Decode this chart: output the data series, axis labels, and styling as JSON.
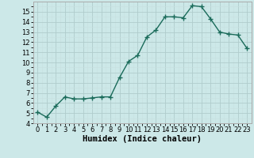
{
  "x": [
    0,
    1,
    2,
    3,
    4,
    5,
    6,
    7,
    8,
    9,
    10,
    11,
    12,
    13,
    14,
    15,
    16,
    17,
    18,
    19,
    20,
    21,
    22,
    23
  ],
  "y": [
    5.1,
    4.6,
    5.7,
    6.6,
    6.4,
    6.4,
    6.5,
    6.6,
    6.6,
    8.5,
    10.1,
    10.7,
    12.5,
    13.2,
    14.5,
    14.5,
    14.4,
    15.6,
    15.5,
    14.3,
    13.0,
    12.8,
    12.7,
    11.4
  ],
  "line_color": "#1a6b5a",
  "marker": "+",
  "marker_size": 4,
  "marker_linewidth": 1.0,
  "background_color": "#cce8e8",
  "grid_color_major": "#b0cccc",
  "grid_color_minor": "#c8e0e0",
  "xlabel": "Humidex (Indice chaleur)",
  "ylim": [
    4,
    16
  ],
  "xlim": [
    -0.5,
    23.5
  ],
  "yticks": [
    4,
    5,
    6,
    7,
    8,
    9,
    10,
    11,
    12,
    13,
    14,
    15
  ],
  "xticks": [
    0,
    1,
    2,
    3,
    4,
    5,
    6,
    7,
    8,
    9,
    10,
    11,
    12,
    13,
    14,
    15,
    16,
    17,
    18,
    19,
    20,
    21,
    22,
    23
  ],
  "tick_fontsize": 6,
  "xlabel_fontsize": 7.5,
  "xlabel_fontweight": "bold",
  "linewidth": 1.0
}
